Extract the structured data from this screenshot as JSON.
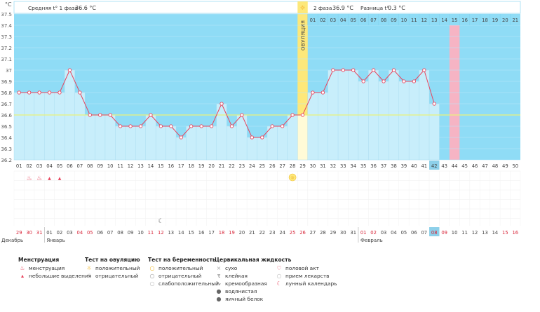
{
  "chart_data": {
    "type": "line",
    "title": "",
    "ylabel": "°C",
    "ylim": [
      36.2,
      37.5
    ],
    "yticks": [
      "37.5",
      "37.4",
      "37.3",
      "37.2",
      "37.1",
      "37",
      "36.9",
      "36.8",
      "36.7",
      "36.6",
      "36.5",
      "36.4",
      "36.3",
      "36.2"
    ],
    "cycle_days": [
      "01",
      "02",
      "03",
      "04",
      "05",
      "06",
      "07",
      "08",
      "09",
      "10",
      "11",
      "12",
      "13",
      "14",
      "15",
      "16",
      "17",
      "18",
      "19",
      "20",
      "21",
      "22",
      "23",
      "24",
      "25",
      "26",
      "27",
      "28",
      "29",
      "30",
      "31",
      "32",
      "33",
      "34",
      "35",
      "36",
      "37",
      "38",
      "39",
      "40",
      "41",
      "42",
      "43",
      "44",
      "45",
      "46",
      "47",
      "48",
      "49",
      "50"
    ],
    "temperatures": [
      36.8,
      36.8,
      36.8,
      36.8,
      36.8,
      37.0,
      36.8,
      36.6,
      36.6,
      36.6,
      36.5,
      36.5,
      36.5,
      36.6,
      36.5,
      36.5,
      36.4,
      36.5,
      36.5,
      36.5,
      36.7,
      36.5,
      36.6,
      36.4,
      36.4,
      36.5,
      36.5,
      36.6,
      36.6,
      36.8,
      36.8,
      37.0,
      37.0,
      37.0,
      36.9,
      37.0,
      36.9,
      37.0,
      36.9,
      36.9,
      37.0,
      36.7
    ],
    "coverline": 36.6,
    "ovulation_day": "29",
    "current_day": "42",
    "highlight_day": "44",
    "phase1_label": "Средняя t° 1 фаза",
    "phase1_avg": "36.6 °C",
    "phase2_label": "2 фаза",
    "phase2_avg": "36.9 °C",
    "diff_label": "Разница t°",
    "diff_value": "0.3 °C",
    "ovulation_label": "ОВУЛЯЦИЯ",
    "phase2_days": [
      "01",
      "02",
      "03",
      "04",
      "05",
      "06",
      "07",
      "08",
      "09",
      "10",
      "11",
      "12",
      "13",
      "14",
      "15",
      "16",
      "17",
      "18",
      "19",
      "20",
      "21"
    ],
    "dates": [
      "29",
      "30",
      "31",
      "01",
      "02",
      "03",
      "04",
      "05",
      "06",
      "07",
      "08",
      "09",
      "10",
      "11",
      "12",
      "13",
      "14",
      "15",
      "16",
      "17",
      "18",
      "19",
      "20",
      "21",
      "22",
      "23",
      "24",
      "25",
      "26",
      "27",
      "28",
      "29",
      "30",
      "31",
      "01",
      "02",
      "03",
      "04",
      "05",
      "06",
      "07",
      "08",
      "09",
      "10",
      "11",
      "12",
      "13",
      "14",
      "15",
      "16"
    ],
    "weekend_dates_idx": [
      0,
      1,
      2,
      6,
      7,
      13,
      14,
      20,
      21,
      27,
      28,
      34,
      35,
      41,
      42,
      48,
      49
    ],
    "today_date_idx": 41,
    "months": [
      "Декабрь",
      "Январь",
      "Февраль"
    ],
    "menstruation_days": [
      "02",
      "03",
      "04",
      "05"
    ],
    "ovulation_test_positive_day": "28",
    "moon_day": "15"
  },
  "legend": {
    "menstruation": {
      "title": "Менструация",
      "items": [
        "менструация",
        "небольшие выделения"
      ]
    },
    "ovulation_test": {
      "title": "Тест на овуляцию",
      "items": [
        "положительный",
        "отрицательный"
      ]
    },
    "pregnancy_test": {
      "title": "Тест на беременность",
      "items": [
        "положительный",
        "отрицательный",
        "слабоположительный"
      ]
    },
    "cervical_fluid": {
      "title": "Цервикальная жидкость",
      "items": [
        "сухо",
        "клейкая",
        "кремообразная",
        "водянистая",
        "яичный белок"
      ]
    },
    "other": {
      "items": [
        "половой акт",
        "прием лекарств",
        "лунный календарь"
      ]
    }
  },
  "colors": {
    "plot_bg": "#8fdcf6",
    "fill": "#c8eefb",
    "line": "#e8445d",
    "ovulation": "#fde87a",
    "highlight": "#f6b4c4",
    "today": "#8dd0ea",
    "coverline": "#e9f27a",
    "red_text": "#d8283c",
    "grid": "#b9e8fa"
  }
}
